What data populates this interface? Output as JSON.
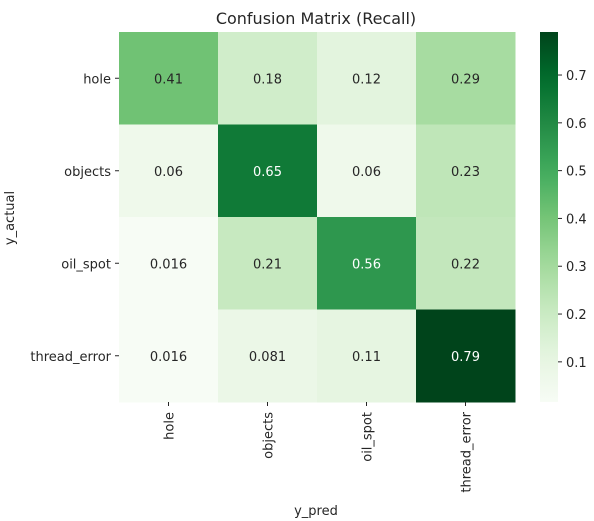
{
  "chart_data": {
    "type": "heatmap",
    "title": "Confusion Matrix (Recall)",
    "xlabel": "y_pred",
    "ylabel": "y_actual",
    "x_categories": [
      "hole",
      "objects",
      "oil_spot",
      "thread_error"
    ],
    "y_categories": [
      "hole",
      "objects",
      "oil_spot",
      "thread_error"
    ],
    "values": [
      [
        0.41,
        0.18,
        0.12,
        0.29
      ],
      [
        0.06,
        0.65,
        0.06,
        0.23
      ],
      [
        0.016,
        0.21,
        0.56,
        0.22
      ],
      [
        0.016,
        0.081,
        0.11,
        0.79
      ]
    ],
    "colormap": "Greens",
    "colorbar": {
      "range": [
        0.016,
        0.79
      ],
      "ticks": [
        0.1,
        0.2,
        0.3,
        0.4,
        0.5,
        0.6,
        0.7
      ]
    },
    "grid": false
  }
}
